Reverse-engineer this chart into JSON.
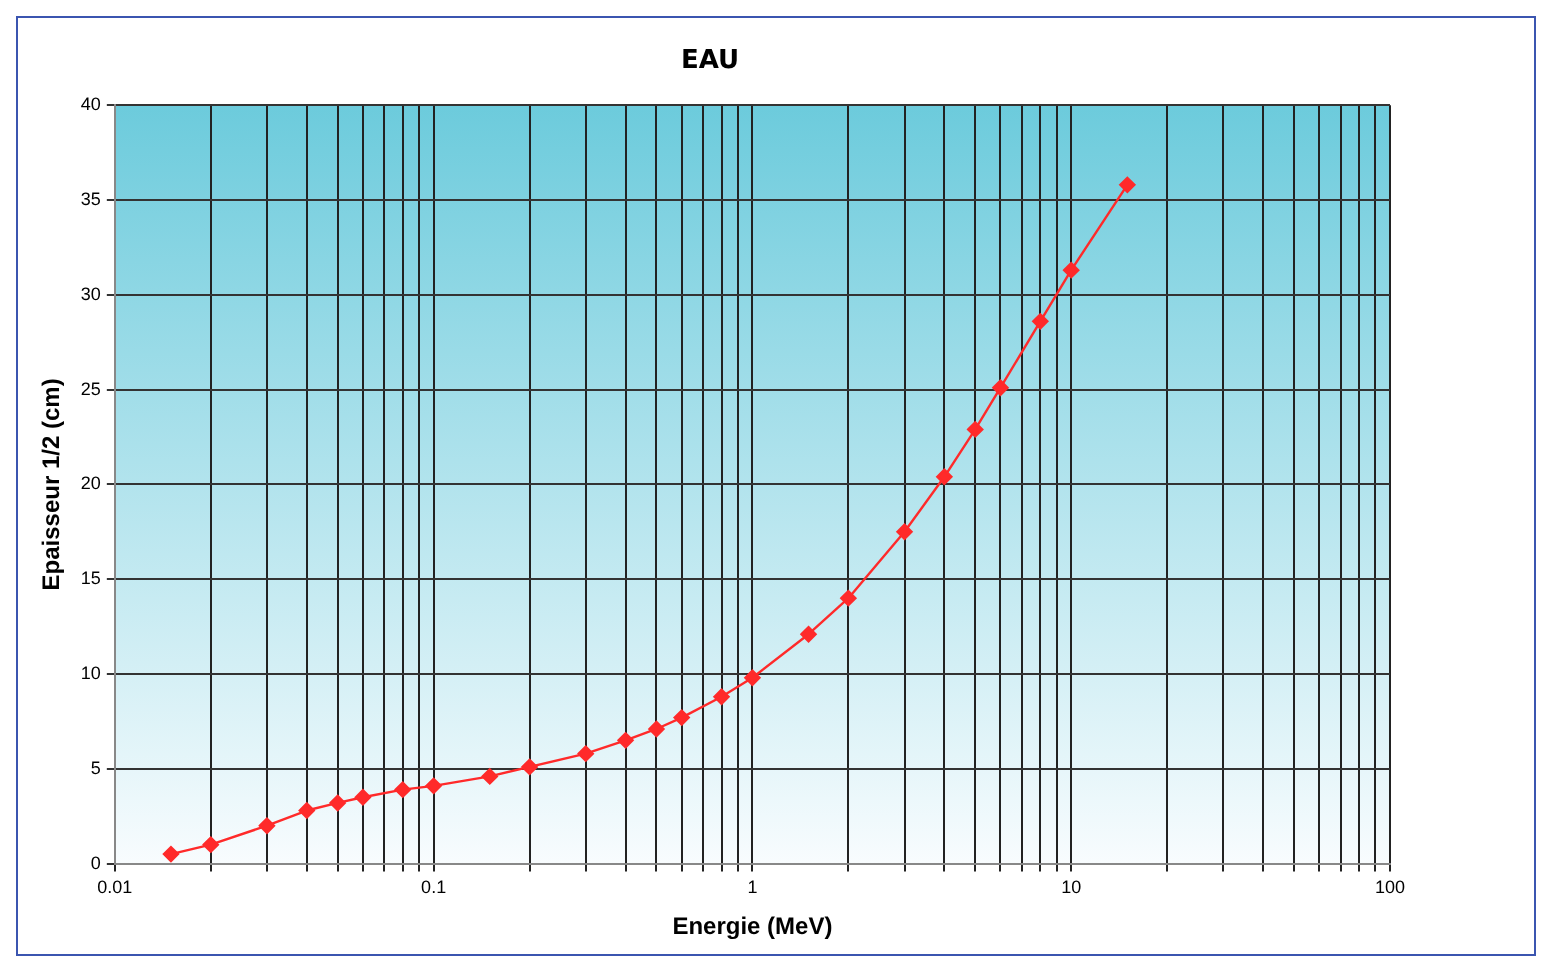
{
  "chart_data": {
    "type": "line",
    "title": "EAU",
    "xlabel": "Energie (MeV)",
    "ylabel": "Epaisseur 1/2 (cm)",
    "log": "x",
    "grid": true,
    "marker": "diamond",
    "legend": false,
    "x": [
      0.015,
      0.02,
      0.03,
      0.04,
      0.05,
      0.06,
      0.08,
      0.1,
      0.15,
      0.2,
      0.3,
      0.4,
      0.5,
      0.6,
      0.8,
      1,
      1.5,
      2,
      3,
      4,
      5,
      6,
      8,
      10,
      15
    ],
    "series": [
      {
        "color": "#ff2a2a",
        "values": [
          0.5,
          1.0,
          2.0,
          2.8,
          3.2,
          3.5,
          3.9,
          4.1,
          4.6,
          5.1,
          5.8,
          6.5,
          7.1,
          7.7,
          8.8,
          9.8,
          12.1,
          14.0,
          17.5,
          20.4,
          22.9,
          25.1,
          28.6,
          31.3,
          35.8
        ]
      }
    ],
    "xlim": [
      0.01,
      100
    ],
    "xticks": [
      0.01,
      {
        "value": 0.02,
        "label": null
      },
      {
        "value": 0.03,
        "label": null
      },
      {
        "value": 0.04,
        "label": null
      },
      {
        "value": 0.05,
        "label": null
      },
      {
        "value": 0.06,
        "label": null
      },
      {
        "value": 0.07,
        "label": null
      },
      {
        "value": 0.08,
        "label": null
      },
      {
        "value": 0.09,
        "label": null
      },
      0.1,
      {
        "value": 0.2,
        "label": null
      },
      {
        "value": 0.3,
        "label": null
      },
      {
        "value": 0.4,
        "label": null
      },
      {
        "value": 0.5,
        "label": null
      },
      {
        "value": 0.6,
        "label": null
      },
      {
        "value": 0.7,
        "label": null
      },
      {
        "value": 0.8,
        "label": null
      },
      {
        "value": 0.9,
        "label": null
      },
      1,
      {
        "value": 2,
        "label": null
      },
      {
        "value": 3,
        "label": null
      },
      {
        "value": 4,
        "label": null
      },
      {
        "value": 5,
        "label": null
      },
      {
        "value": 6,
        "label": null
      },
      {
        "value": 7,
        "label": null
      },
      {
        "value": 8,
        "label": null
      },
      {
        "value": 9,
        "label": null
      },
      10,
      {
        "value": 20,
        "label": null
      },
      {
        "value": 30,
        "label": null
      },
      {
        "value": 40,
        "label": null
      },
      {
        "value": 50,
        "label": null
      },
      {
        "value": 60,
        "label": null
      },
      {
        "value": 70,
        "label": null
      },
      {
        "value": 80,
        "label": null
      },
      {
        "value": 90,
        "label": null
      },
      100
    ],
    "ylim": [
      0,
      40
    ],
    "yticks": [
      0,
      5,
      10,
      15,
      20,
      25,
      30,
      35,
      40
    ]
  }
}
